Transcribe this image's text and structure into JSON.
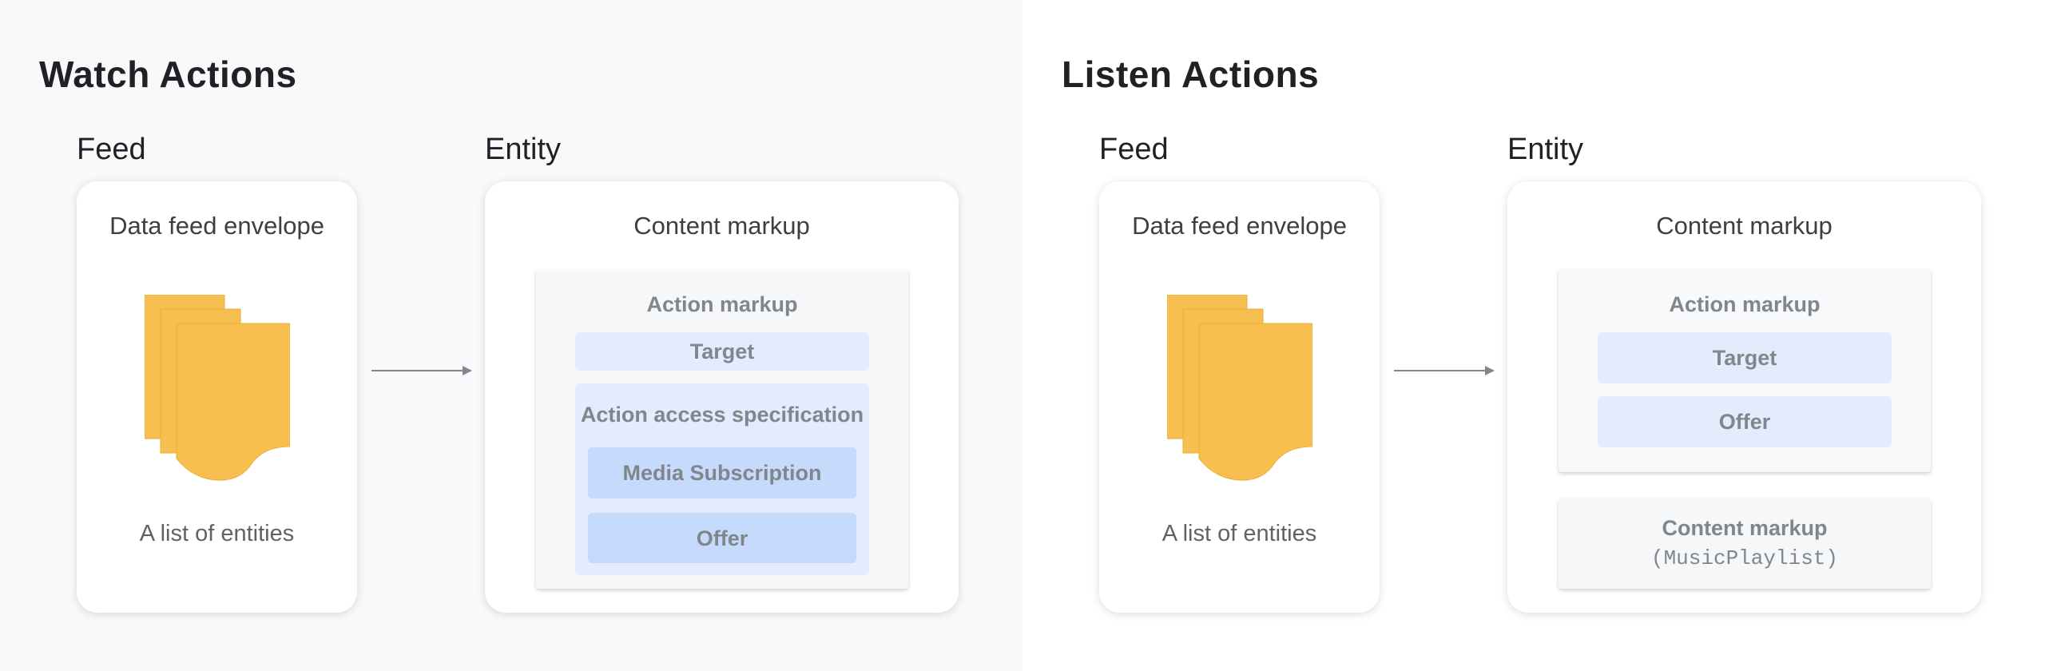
{
  "colors": {
    "document": "#f6bf4f",
    "light_box": "#e3ebfc",
    "dark_box": "#c6dafc",
    "arrow": "#80868b"
  },
  "watch": {
    "title": "Watch Actions",
    "feed_label": "Feed",
    "entity_label": "Entity",
    "feed_card": {
      "title": "Data feed envelope",
      "icon": "documents-icon",
      "caption": "A list of entities"
    },
    "entity_card": {
      "title": "Content markup",
      "action_markup": "Action markup",
      "target": "Target",
      "access_spec": "Action access specification",
      "media_subscription": "Media Subscription",
      "offer": "Offer"
    }
  },
  "listen": {
    "title": "Listen Actions",
    "feed_label": "Feed",
    "entity_label": "Entity",
    "feed_card": {
      "title": "Data feed envelope",
      "icon": "documents-icon",
      "caption": "A list of entities"
    },
    "entity_card": {
      "title": "Content markup",
      "action_markup": "Action markup",
      "target": "Target",
      "offer": "Offer",
      "content_markup": "Content markup",
      "content_type": "(MusicPlaylist)"
    }
  }
}
